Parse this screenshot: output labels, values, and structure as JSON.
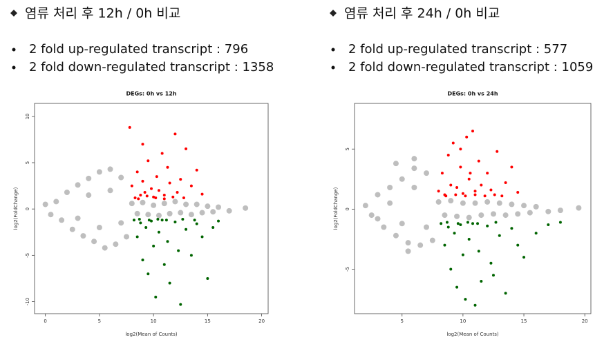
{
  "sections": [
    {
      "heading": "염류 처리 후 12h / 0h 비교",
      "bullets": [
        "2 fold up-regulated transcript : 796",
        "2 fold down-regulated transcript : 1358"
      ]
    },
    {
      "heading": "염류 처리 후 24h / 0h 비교",
      "bullets": [
        "2 fold up-regulated transcript : 577",
        "2 fold down-regulated transcript : 1059"
      ]
    }
  ],
  "chart_data": [
    {
      "type": "scatter",
      "title": "DEGs: 0h vs 12h",
      "x_label": "log2(Mean of Counts)",
      "y_label": "log2(FoldChange)",
      "xlim": [
        -1,
        20.6
      ],
      "ylim": [
        -11.3,
        11.4
      ],
      "xticks": [
        0,
        5,
        10,
        15,
        20
      ],
      "yticks": [
        -10,
        -5,
        0,
        5,
        10
      ],
      "series": [
        {
          "color": "#bebebe",
          "x": [
            0,
            0.5,
            1,
            1.5,
            2,
            2.5,
            3,
            3.5,
            4,
            4.5,
            5,
            5.5,
            6,
            6.5,
            7,
            7.5,
            8,
            8.5,
            9,
            9.5,
            10,
            10.5,
            11,
            11.5,
            12,
            12.5,
            13,
            13.5,
            14,
            14.5,
            15,
            15.5,
            16,
            17,
            18.5,
            3,
            4,
            5,
            6,
            7
          ],
          "values": [
            0.5,
            -0.6,
            0.8,
            -1.2,
            1.8,
            -2.2,
            2.6,
            -2.9,
            3.3,
            -3.5,
            4,
            -4.2,
            4.3,
            -3.8,
            3.4,
            -3,
            0.6,
            -0.5,
            0.7,
            -0.6,
            0.4,
            -0.7,
            0.6,
            -0.5,
            0.8,
            -0.4,
            0.5,
            -0.6,
            0.5,
            -0.4,
            0.3,
            -0.3,
            0.2,
            -0.2,
            0.1,
            -1,
            1.5,
            -2,
            2,
            -1.5
          ]
        },
        {
          "color": "#ff0000",
          "x": [
            8,
            8.3,
            8.5,
            8.8,
            9,
            9.2,
            9.5,
            9.8,
            10,
            10.3,
            10.5,
            10.8,
            11,
            11.3,
            11.5,
            12,
            12.2,
            12.5,
            13,
            13.5,
            14,
            14.5,
            8.6,
            9.4,
            10.2,
            11,
            11.8,
            12.8,
            9,
            7.8
          ],
          "values": [
            2.5,
            1.2,
            4,
            1.5,
            3,
            1.8,
            5.2,
            2.2,
            1.3,
            3.5,
            2,
            6,
            1.5,
            4.5,
            2.8,
            8.1,
            1.8,
            3.2,
            6.5,
            2.5,
            4.2,
            1.6,
            1.1,
            1.4,
            1.2,
            1.1,
            1.3,
            1.2,
            7,
            8.8
          ]
        },
        {
          "color": "#006400",
          "x": [
            8.2,
            8.5,
            8.8,
            9,
            9.3,
            9.5,
            9.8,
            10,
            10.2,
            10.5,
            10.8,
            11,
            11.3,
            11.5,
            12,
            12.3,
            12.5,
            13,
            13.5,
            14,
            14.5,
            15,
            15.5,
            16,
            8.7,
            9.6,
            10.4,
            11.2,
            12.7,
            13.8
          ],
          "values": [
            -1.2,
            -3,
            -1.5,
            -5.5,
            -2,
            -7,
            -1.3,
            -4,
            -9.5,
            -2.5,
            -1.2,
            -6,
            -3.5,
            -8,
            -1.4,
            -4.5,
            -10.3,
            -2.2,
            -5,
            -1.6,
            -3,
            -7.5,
            -2,
            -1.3,
            -1.1,
            -1.2,
            -1.1,
            -1.2,
            -1.1,
            -1.2
          ]
        }
      ]
    },
    {
      "type": "scatter",
      "title": "DEGs: 0h vs 24h",
      "x_label": "log2(Mean of Counts)",
      "y_label": "log2(FoldChange)",
      "xlim": [
        1.1,
        20.5
      ],
      "ylim": [
        -8.7,
        8.8
      ],
      "xticks": [
        5,
        10,
        15,
        20
      ],
      "yticks": [
        -5,
        0,
        5
      ],
      "series": [
        {
          "color": "#bebebe",
          "x": [
            2,
            2.5,
            3,
            3.5,
            4,
            4.5,
            5,
            5.5,
            6,
            6.5,
            7,
            7.5,
            8,
            8.5,
            9,
            9.5,
            10,
            10.5,
            11,
            11.5,
            12,
            12.5,
            13,
            13.5,
            14,
            14.5,
            15,
            15.5,
            16,
            17,
            18,
            19.5,
            3,
            4,
            5,
            6,
            7,
            4.5,
            6,
            5.5
          ],
          "values": [
            0.3,
            -0.5,
            1.2,
            -1.5,
            1.8,
            -2.2,
            2.5,
            -2.8,
            3.4,
            -3,
            3,
            -2.6,
            0.6,
            -0.5,
            0.7,
            -0.6,
            0.5,
            -0.7,
            0.5,
            -0.5,
            0.6,
            -0.4,
            0.5,
            -0.5,
            0.4,
            -0.4,
            0.3,
            -0.3,
            0.2,
            -0.2,
            -0.1,
            0.1,
            -0.8,
            0.5,
            -1.2,
            1.8,
            -1.5,
            3.8,
            4.2,
            -3.5
          ]
        },
        {
          "color": "#ff0000",
          "x": [
            8,
            8.3,
            8.5,
            8.8,
            9,
            9.2,
            9.5,
            9.8,
            10,
            10.3,
            10.5,
            10.8,
            11,
            11.3,
            11.5,
            12,
            12.3,
            12.8,
            13.5,
            14,
            14.5,
            8.6,
            9.4,
            10.2,
            11,
            11.8,
            12.6,
            13.2,
            9.8,
            10.6
          ],
          "values": [
            1.5,
            3,
            1.2,
            4.5,
            2,
            5.5,
            1.8,
            3.5,
            1.3,
            6,
            2.5,
            6.5,
            1.5,
            4,
            2,
            3,
            1.6,
            4.8,
            2.2,
            3.5,
            1.4,
            1.1,
            1.2,
            1.1,
            1.2,
            1.1,
            1.2,
            1.1,
            5,
            3
          ]
        },
        {
          "color": "#006400",
          "x": [
            8.2,
            8.5,
            8.8,
            9,
            9.3,
            9.5,
            9.8,
            10,
            10.2,
            10.5,
            10.8,
            11,
            11.3,
            11.5,
            12,
            12.3,
            12.5,
            13,
            13.5,
            14,
            14.5,
            15,
            16,
            17,
            18,
            8.7,
            9.6,
            10.4,
            11.2,
            12.7
          ],
          "values": [
            -1.2,
            -3,
            -1.5,
            -5,
            -2,
            -6.5,
            -1.3,
            -3.8,
            -7.5,
            -2.5,
            -1.2,
            -8,
            -3.5,
            -6,
            -1.4,
            -4.5,
            -5.5,
            -2.2,
            -7,
            -1.6,
            -3,
            -4,
            -2,
            -1.3,
            -1.1,
            -1.1,
            -1.2,
            -1.1,
            -1.2,
            -1.1
          ]
        }
      ]
    }
  ]
}
